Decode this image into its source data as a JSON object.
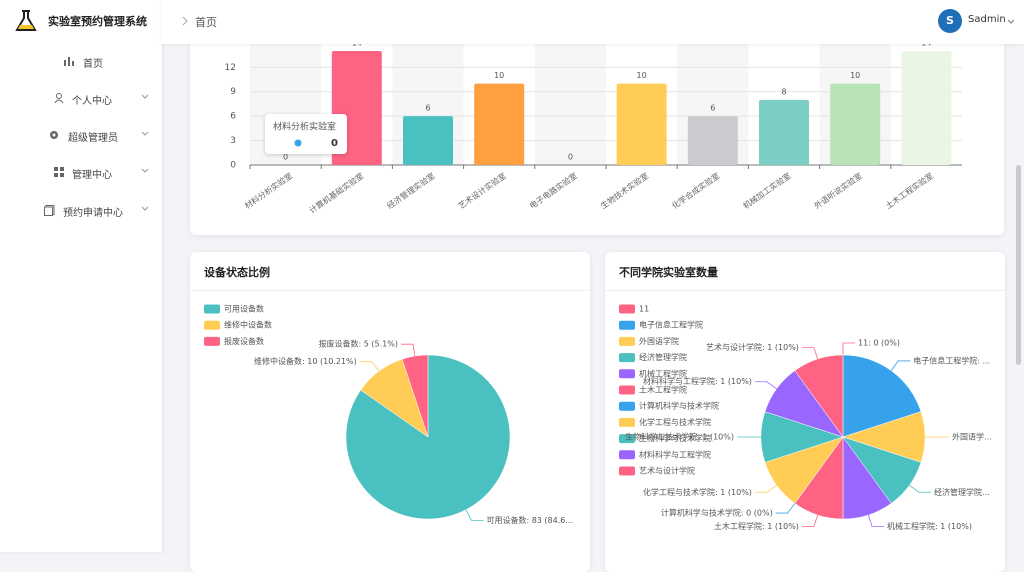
{
  "sidebar": {
    "title": "实验室预约管理系统",
    "menu": [
      "首页",
      "个人中心",
      "超级管理员",
      "管理中心",
      "预约申请中心"
    ]
  },
  "header": {
    "breadcrumb": "首页",
    "avatar": "S",
    "user": "Sadmin"
  },
  "chart_data": [
    {
      "type": "bar",
      "categories": [
        "材料分析实验室",
        "计算机基础实验室",
        "经济管理实验室",
        "艺术设计实验室",
        "电子电路实验室",
        "生物技术实验室",
        "化学合成实验室",
        "机械加工实验室",
        "外语听说实验室",
        "土木工程实验室"
      ],
      "values": [
        0,
        14,
        6,
        10,
        0,
        10,
        6,
        8,
        10,
        14
      ],
      "colors": [
        "#ff6384",
        "#ff6384",
        "#4bc0c0",
        "#ff9f40",
        "#9966ff",
        "#ffcd56",
        "#c9cbcf",
        "#7ccdc4",
        "#b9e4b8",
        "#eaf6e3"
      ],
      "ylim": [
        0,
        14
      ],
      "yticks": [
        0,
        3,
        6,
        9,
        12
      ],
      "grid": true
    },
    {
      "type": "pie",
      "title": "设备状态比例",
      "categories": [
        "可用设备数",
        "维修中设备数",
        "报废设备数"
      ],
      "values": [
        83,
        10,
        5
      ],
      "value_labels": [
        "可用设备数: 83 (84.6...",
        "维修中设备数: 10 (10.21%)",
        "报废设备数: 5 (5.1%)"
      ],
      "colors": [
        "#4bc0c0",
        "#ffcd56",
        "#ff6384"
      ],
      "legend": "top-left"
    },
    {
      "type": "pie",
      "title": "不同学院实验室数量",
      "categories": [
        "11",
        "电子信息工程学院",
        "外国语学院",
        "经济管理学院",
        "机械工程学院",
        "土木工程学院",
        "计算机科学与技术学院",
        "化学工程与技术学院",
        "生物科学与技术学院",
        "材料科学与工程学院",
        "艺术与设计学院"
      ],
      "values": [
        0,
        2,
        1,
        1,
        1,
        1,
        0,
        1,
        1,
        1,
        1
      ],
      "value_labels": [
        "11: 0 (0%)",
        "电子信息工程学院: ...",
        "外国语学...",
        "经济管理学院...",
        "机械工程学院: 1 (10%)",
        "土木工程学院: 1 (10%)",
        "计算机科学与技术学院: 0 (0%)",
        "化学工程与技术学院: 1 (10%)",
        "生物科学与技术学院: 1 (10%)",
        "材料科学与工程学院: 1 (10%)",
        "艺术与设计学院: 1 (10%)"
      ],
      "colors": [
        "#ff6384",
        "#36a2eb",
        "#ffcd56",
        "#4bc0c0",
        "#9966ff",
        "#ff6384",
        "#36a2eb",
        "#ffcd56",
        "#4bc0c0",
        "#9966ff",
        "#ff6384"
      ],
      "legend": "top-left"
    }
  ]
}
